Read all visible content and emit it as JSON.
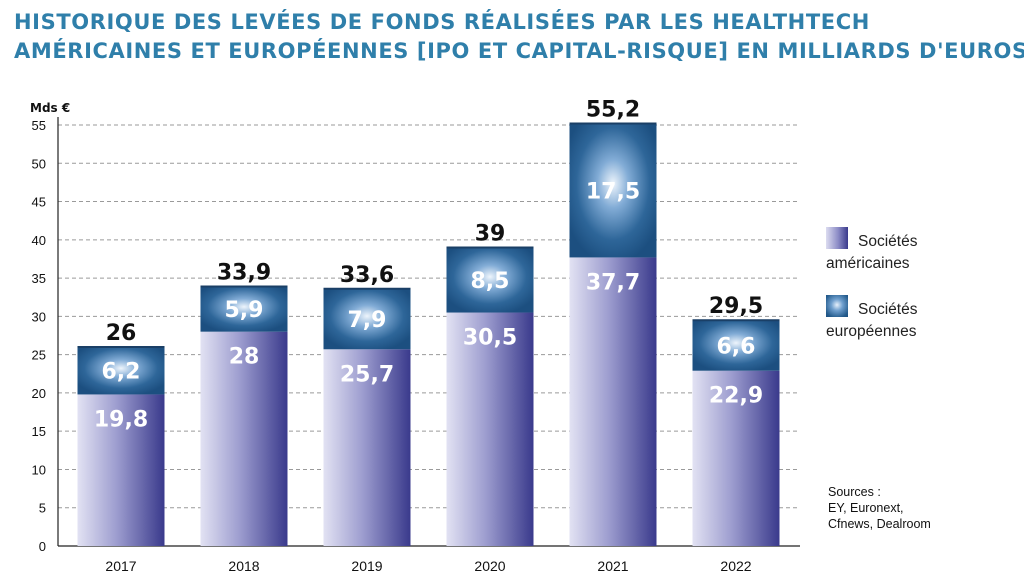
{
  "title_lines": [
    "HISTORIQUE DES LEVÉES DE FONDS RÉALISÉES PAR LES HEALTHTECH",
    "AMÉRICAINES ET EUROPÉENNES [IPO ET CAPITAL-RISQUE] EN MILLIARDS D'EUROS"
  ],
  "legend": {
    "us_line1": "Sociétés",
    "us_line2": "américaines",
    "eu_line1": "Sociétés",
    "eu_line2": "européennes"
  },
  "sources": {
    "line1": "Sources :",
    "line2": "EY, Euronext,",
    "line3": "Cfnews, Dealroom"
  },
  "colors": {
    "title": "#2f7faa",
    "us_dark": "#3a3a8c",
    "us_light": "#dcdcf0",
    "eu_dark": "#1c4f80",
    "eu_light": "#e6f0fb",
    "grid": "#9a9a9a"
  },
  "chart_data": {
    "type": "bar",
    "stacked": true,
    "ylabel": "Mds €",
    "ylim": [
      0,
      55
    ],
    "yticks": [
      0,
      5,
      10,
      15,
      20,
      25,
      30,
      35,
      40,
      45,
      50,
      55
    ],
    "grid": true,
    "legend_position": "right",
    "categories": [
      "2017",
      "2018",
      "2019",
      "2020",
      "2021",
      "2022"
    ],
    "series": [
      {
        "name": "Sociétés américaines",
        "values": [
          19.8,
          28,
          25.7,
          30.5,
          37.7,
          22.9
        ],
        "labels": [
          "19,8",
          "28",
          "25,7",
          "30,5",
          "37,7",
          "22,9"
        ]
      },
      {
        "name": "Sociétés européennes",
        "values": [
          6.2,
          5.9,
          7.9,
          8.5,
          17.5,
          6.6
        ],
        "labels": [
          "6,2",
          "5,9",
          "7,9",
          "8,5",
          "17,5",
          "6,6"
        ]
      }
    ],
    "totals": [
      26,
      33.9,
      33.6,
      39,
      55.2,
      29.5
    ],
    "total_labels": [
      "26",
      "33,9",
      "33,6",
      "39",
      "55,2",
      "29,5"
    ]
  }
}
